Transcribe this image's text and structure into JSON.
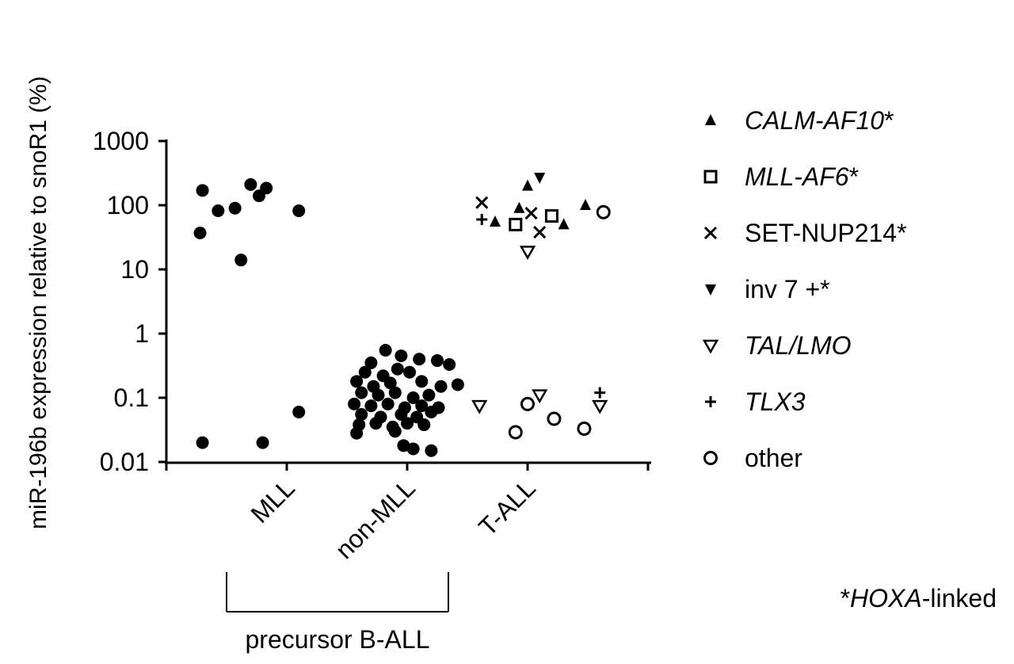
{
  "chart_data": {
    "type": "scatter",
    "ylabel": "miR-196b expression relative to snoR1 (%)",
    "yscale": "log",
    "ylim": [
      0.01,
      1000
    ],
    "ytick_labels": [
      "0.01",
      "0.1",
      "1",
      "10",
      "100",
      "1000"
    ],
    "categories": [
      "MLL",
      "non-MLL",
      "T-ALL"
    ],
    "group_bracket_label": "precursor B-ALL",
    "footnote": {
      "star": "*",
      "gene": "HOXA",
      "rest": "-linked"
    },
    "series": [
      {
        "category": "MLL",
        "marker": "filled-circle",
        "points": [
          {
            "x": 0.3,
            "y": 170
          },
          {
            "x": 0.7,
            "y": 210
          },
          {
            "x": 0.83,
            "y": 185
          },
          {
            "x": 0.43,
            "y": 82
          },
          {
            "x": 0.57,
            "y": 90
          },
          {
            "x": 0.77,
            "y": 140
          },
          {
            "x": 1.1,
            "y": 82
          },
          {
            "x": 0.28,
            "y": 37
          },
          {
            "x": 0.62,
            "y": 14
          },
          {
            "x": 1.1,
            "y": 0.06
          },
          {
            "x": 0.3,
            "y": 0.02
          },
          {
            "x": 0.8,
            "y": 0.02
          }
        ]
      },
      {
        "category": "non-MLL",
        "marker": "filled-circle",
        "points": [
          {
            "x": 1.82,
            "y": 0.55
          },
          {
            "x": 1.95,
            "y": 0.45
          },
          {
            "x": 1.7,
            "y": 0.35
          },
          {
            "x": 2.1,
            "y": 0.4
          },
          {
            "x": 2.25,
            "y": 0.38
          },
          {
            "x": 2.35,
            "y": 0.33
          },
          {
            "x": 1.65,
            "y": 0.25
          },
          {
            "x": 1.8,
            "y": 0.22
          },
          {
            "x": 1.92,
            "y": 0.28
          },
          {
            "x": 2.02,
            "y": 0.25
          },
          {
            "x": 1.58,
            "y": 0.18
          },
          {
            "x": 1.72,
            "y": 0.15
          },
          {
            "x": 1.86,
            "y": 0.17
          },
          {
            "x": 2.12,
            "y": 0.18
          },
          {
            "x": 2.28,
            "y": 0.15
          },
          {
            "x": 2.42,
            "y": 0.16
          },
          {
            "x": 1.62,
            "y": 0.12
          },
          {
            "x": 1.76,
            "y": 0.11
          },
          {
            "x": 1.9,
            "y": 0.12
          },
          {
            "x": 2.05,
            "y": 0.1
          },
          {
            "x": 2.18,
            "y": 0.11
          },
          {
            "x": 1.56,
            "y": 0.08
          },
          {
            "x": 1.7,
            "y": 0.075
          },
          {
            "x": 1.84,
            "y": 0.08
          },
          {
            "x": 1.98,
            "y": 0.07
          },
          {
            "x": 2.12,
            "y": 0.075
          },
          {
            "x": 2.26,
            "y": 0.07
          },
          {
            "x": 1.62,
            "y": 0.055
          },
          {
            "x": 1.78,
            "y": 0.05
          },
          {
            "x": 1.95,
            "y": 0.055
          },
          {
            "x": 2.08,
            "y": 0.05
          },
          {
            "x": 2.2,
            "y": 0.06
          },
          {
            "x": 1.6,
            "y": 0.038
          },
          {
            "x": 1.74,
            "y": 0.04
          },
          {
            "x": 1.88,
            "y": 0.035
          },
          {
            "x": 2.0,
            "y": 0.04
          },
          {
            "x": 2.14,
            "y": 0.038
          },
          {
            "x": 1.58,
            "y": 0.028
          },
          {
            "x": 1.9,
            "y": 0.03
          },
          {
            "x": 2.05,
            "y": 0.016
          },
          {
            "x": 2.2,
            "y": 0.015
          },
          {
            "x": 1.97,
            "y": 0.018
          }
        ]
      },
      {
        "category": "T-ALL",
        "points": [
          {
            "x": 2.62,
            "y": 110,
            "marker": "cross"
          },
          {
            "x": 2.62,
            "y": 60,
            "marker": "plus"
          },
          {
            "x": 2.73,
            "y": 55,
            "marker": "filled-triangle-up"
          },
          {
            "x": 2.93,
            "y": 90,
            "marker": "filled-triangle-up"
          },
          {
            "x": 3.0,
            "y": 200,
            "marker": "filled-triangle-up"
          },
          {
            "x": 3.1,
            "y": 270,
            "marker": "filled-triangle-down"
          },
          {
            "x": 3.03,
            "y": 75,
            "marker": "cross"
          },
          {
            "x": 2.9,
            "y": 50,
            "marker": "open-square"
          },
          {
            "x": 3.2,
            "y": 68,
            "marker": "open-square"
          },
          {
            "x": 3.1,
            "y": 38,
            "marker": "cross"
          },
          {
            "x": 3.3,
            "y": 50,
            "marker": "filled-triangle-up"
          },
          {
            "x": 3.48,
            "y": 100,
            "marker": "filled-triangle-up"
          },
          {
            "x": 3.63,
            "y": 78,
            "marker": "open-circle"
          },
          {
            "x": 3.0,
            "y": 19,
            "marker": "open-triangle-down"
          },
          {
            "x": 2.6,
            "y": 0.075,
            "marker": "open-triangle-down"
          },
          {
            "x": 3.1,
            "y": 0.11,
            "marker": "open-triangle-down"
          },
          {
            "x": 3.6,
            "y": 0.075,
            "marker": "open-triangle-down"
          },
          {
            "x": 3.6,
            "y": 0.12,
            "marker": "plus"
          },
          {
            "x": 3.0,
            "y": 0.08,
            "marker": "open-circle"
          },
          {
            "x": 2.9,
            "y": 0.029,
            "marker": "open-circle"
          },
          {
            "x": 3.22,
            "y": 0.047,
            "marker": "open-circle"
          },
          {
            "x": 3.47,
            "y": 0.033,
            "marker": "open-circle"
          }
        ]
      }
    ],
    "legend": [
      {
        "marker": "filled-triangle-up",
        "label": "CALM-AF10",
        "suffix": "*",
        "italic": true
      },
      {
        "marker": "open-square",
        "label": "MLL-AF6",
        "suffix": "*",
        "italic": true
      },
      {
        "marker": "cross",
        "label": "SET-NUP214",
        "suffix": "*",
        "italic": false
      },
      {
        "marker": "filled-triangle-down",
        "label": "inv 7 +",
        "suffix": "*",
        "italic": false
      },
      {
        "marker": "open-triangle-down",
        "label": "TAL/LMO",
        "suffix": "",
        "italic": true
      },
      {
        "marker": "plus",
        "label": "TLX3",
        "suffix": "",
        "italic": true
      },
      {
        "marker": "open-circle",
        "label": "other",
        "suffix": "",
        "italic": false
      }
    ]
  }
}
